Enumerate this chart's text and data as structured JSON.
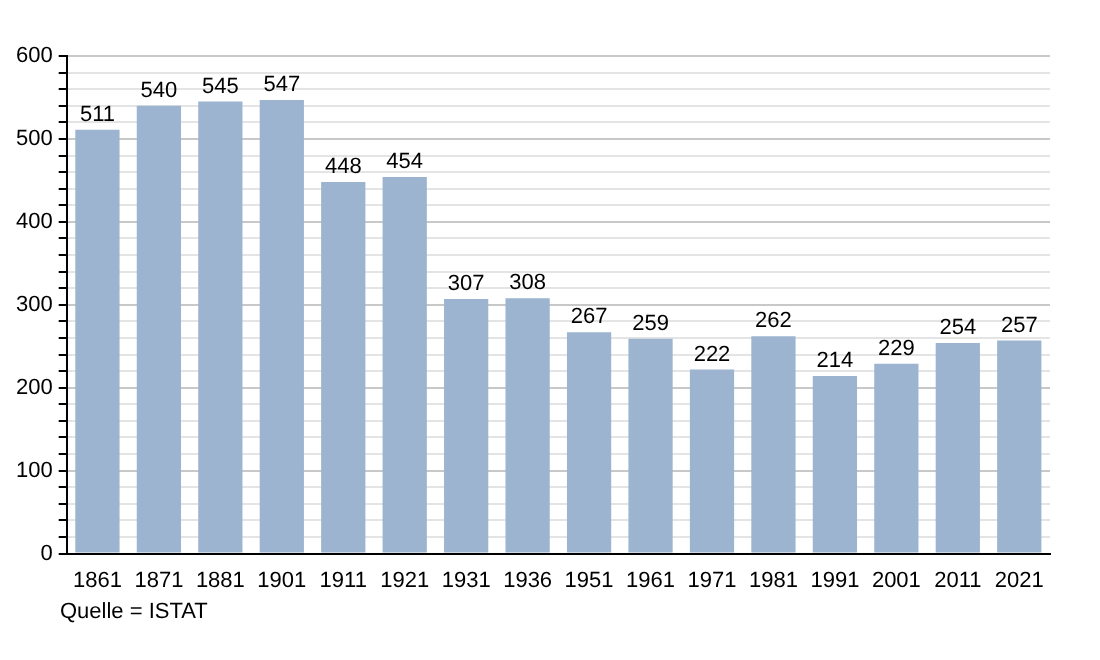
{
  "chart_data": {
    "type": "bar",
    "categories": [
      "1861",
      "1871",
      "1881",
      "1901",
      "1911",
      "1921",
      "1931",
      "1936",
      "1951",
      "1961",
      "1971",
      "1981",
      "1991",
      "2001",
      "2011",
      "2021"
    ],
    "values": [
      511,
      540,
      545,
      547,
      448,
      454,
      307,
      308,
      267,
      259,
      222,
      262,
      214,
      229,
      254,
      257
    ],
    "color": "#9cb4cf",
    "data_labels": true,
    "grid": "y",
    "legend": false,
    "ylim": [
      0,
      600
    ],
    "yticks": [
      0,
      {
        "value": 20,
        "label": null
      },
      {
        "value": 40,
        "label": null
      },
      {
        "value": 60,
        "label": null
      },
      {
        "value": 80,
        "label": null
      },
      100,
      {
        "value": 120,
        "label": null
      },
      {
        "value": 140,
        "label": null
      },
      {
        "value": 160,
        "label": null
      },
      {
        "value": 180,
        "label": null
      },
      200,
      {
        "value": 220,
        "label": null
      },
      {
        "value": 240,
        "label": null
      },
      {
        "value": 260,
        "label": null
      },
      {
        "value": 280,
        "label": null
      },
      300,
      {
        "value": 320,
        "label": null
      },
      {
        "value": 340,
        "label": null
      },
      {
        "value": 360,
        "label": null
      },
      {
        "value": 380,
        "label": null
      },
      400,
      {
        "value": 420,
        "label": null
      },
      {
        "value": 440,
        "label": null
      },
      {
        "value": 460,
        "label": null
      },
      {
        "value": 480,
        "label": null
      },
      500,
      {
        "value": 520,
        "label": null
      },
      {
        "value": 540,
        "label": null
      },
      {
        "value": 560,
        "label": null
      },
      {
        "value": 580,
        "label": null
      },
      600
    ],
    "annotations": [
      "Quelle = ISTAT"
    ]
  }
}
